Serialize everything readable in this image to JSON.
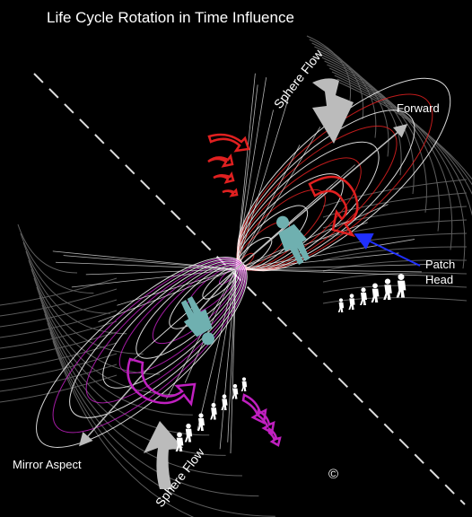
{
  "title": "Life Cycle Rotation in Time Influence",
  "labels": {
    "sphere_flow_top": "Sphere Flow",
    "sphere_flow_bottom": "Sphere Flow",
    "forward": "Forward",
    "patch_head": "Patch\nHead",
    "patch_line1": "Patch",
    "patch_line2": "Head",
    "mirror_aspect": "Mirror Aspect",
    "copyright": "©"
  },
  "colors": {
    "background": "#000000",
    "upper_cone": "#e02020",
    "lower_cone": "#c020c0",
    "grid": "#ffffff",
    "figure": "#6fb0b0",
    "pointer": "#2030ff"
  },
  "icons": [
    "human-figure-icon",
    "curved-arrow-icon",
    "big-arrow-icon"
  ]
}
